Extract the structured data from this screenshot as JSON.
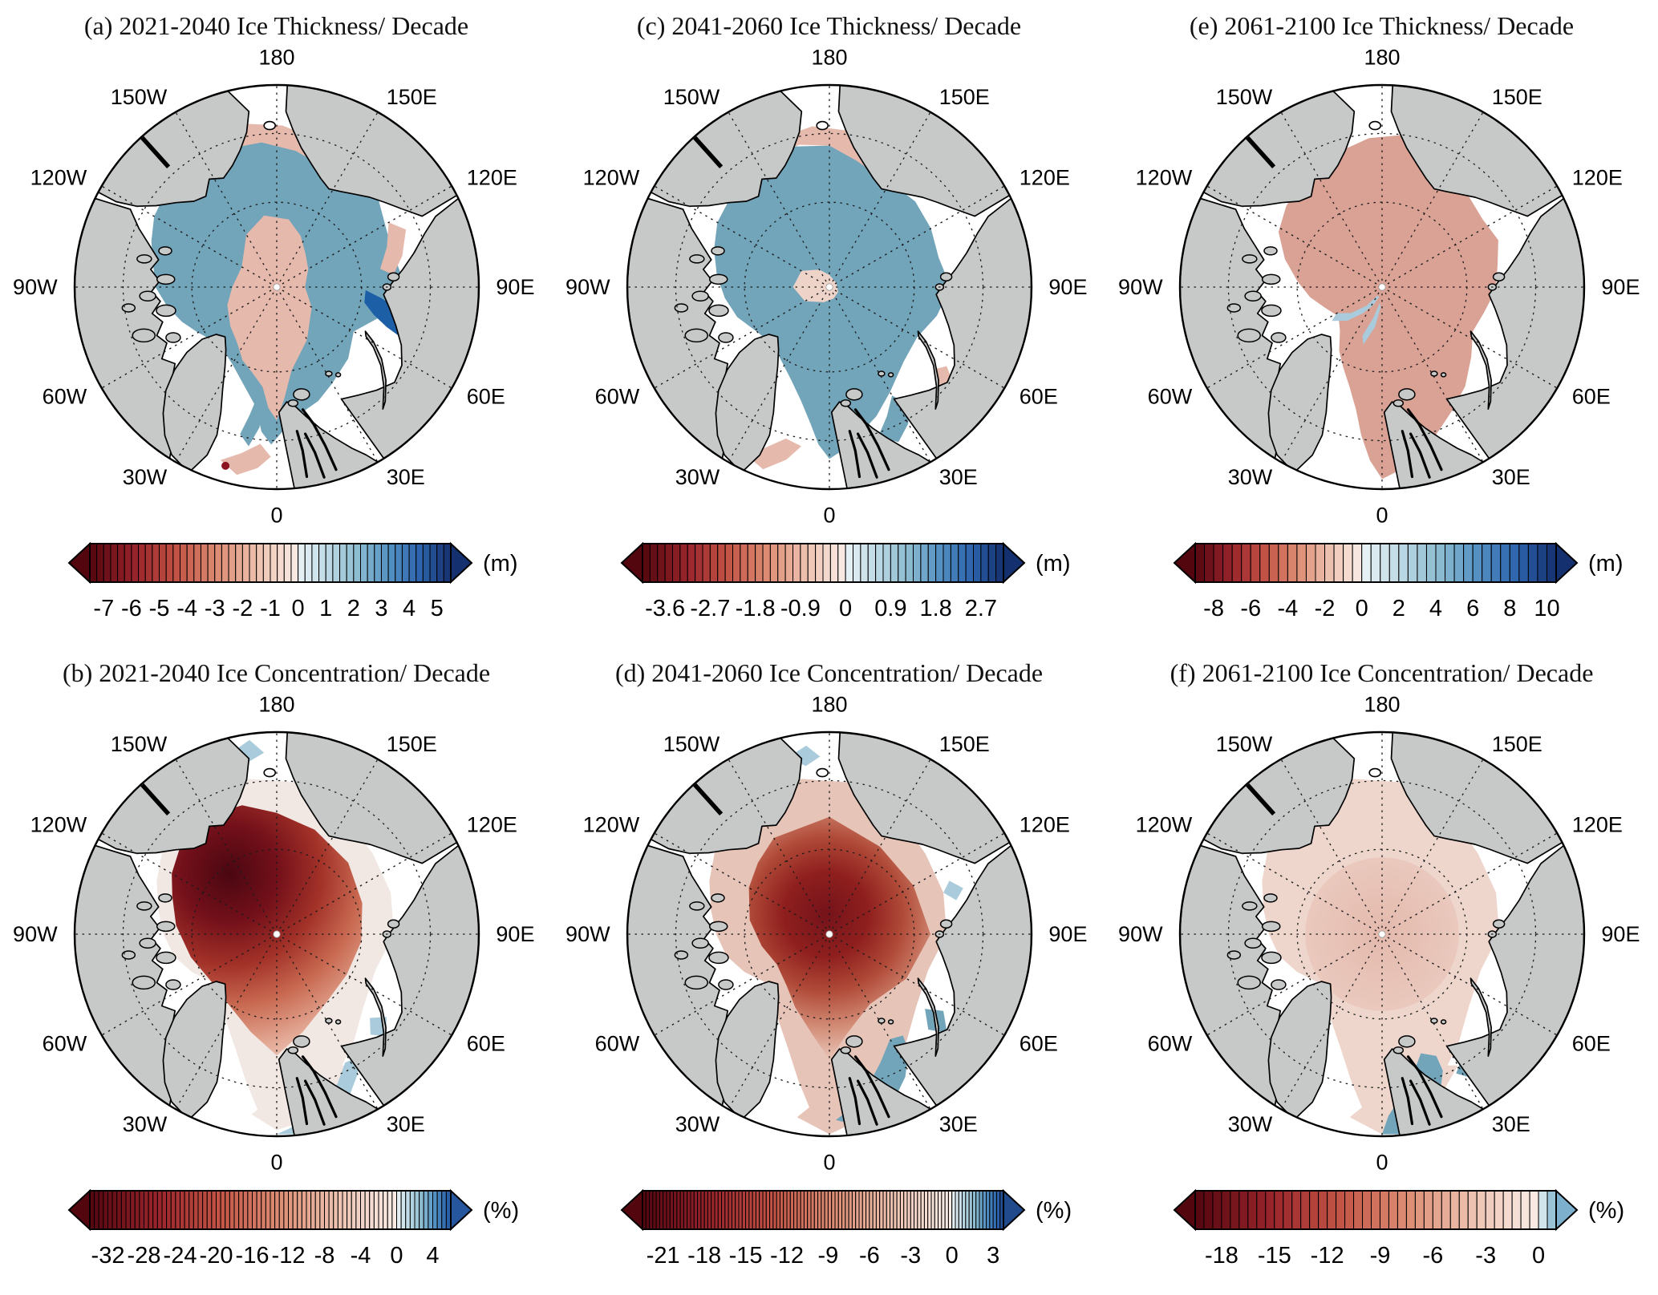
{
  "figure": {
    "description": "Projected Arctic sea ice thickness and concentration trends per decade for three future periods, shown on north polar stereographic maps with diverging red-blue colorbars."
  },
  "palette": {
    "land": "#c7c9c9",
    "ocean": "#ffffff",
    "coast": "#000000",
    "pink": "#e5b9ac",
    "pink_light": "#eed3c9",
    "rose": "#d9a295",
    "steel": "#72a4ba",
    "steel_deep": "#4689ad",
    "navy_patch": "#1d5fa6",
    "light_blue": "#a9cbdb",
    "pale_red": "#f1e7e3",
    "fringe_pink_d": "#e7c4b8",
    "base_pink_f": "#eed6cd",
    "dark_red_spot": "#8c1420"
  },
  "map": {
    "lon_labels": [
      "180",
      "150W",
      "150E",
      "120W",
      "120E",
      "90W",
      "90E",
      "60W",
      "60E",
      "30W",
      "30E",
      "0"
    ],
    "projection": "North Polar Stereographic",
    "graticule": "dashed meridians every 30 degrees and two dashed latitude circles"
  },
  "chart_data": [
    {
      "type": "map",
      "panel": "a",
      "title": "(a) 2021-2040 Ice Thickness/ Decade",
      "variable": "sea ice thickness trend",
      "period": "2021-2040",
      "units": "m per decade",
      "unit_label": "(m)",
      "colorbar": {
        "ticks": [
          "-7",
          "-6",
          "-5",
          "-4",
          "-3",
          "-2",
          "-1",
          "0",
          "1",
          "2",
          "3",
          "4",
          "5"
        ],
        "tick_values": [
          -7,
          -6,
          -5,
          -4,
          -3,
          -2,
          -1,
          0,
          1,
          2,
          3,
          4,
          5
        ],
        "range": [
          -7.5,
          5.5
        ],
        "segments": 52,
        "red_scale": 1.0,
        "blue_scale": 1.0
      },
      "pattern": "Thickness increase (blue) over much of the Arctic basin, decrease (pink) in a central patch toward the Canadian side and along the Siberian and Alaskan coasts; strong localized increase (dark blue) near 90E north of Severnaya Zemlya; scattered patches in the Canadian Archipelago and along East Greenland."
    },
    {
      "type": "map",
      "panel": "c",
      "title": "(c) 2041-2060 Ice Thickness/ Decade",
      "variable": "sea ice thickness trend",
      "period": "2041-2060",
      "units": "m per decade",
      "unit_label": "(m)",
      "colorbar": {
        "ticks": [
          "-3.6",
          "-2.7",
          "-1.8",
          "-0.9",
          "0",
          "0.9",
          "1.8",
          "2.7"
        ],
        "tick_values": [
          -3.6,
          -2.7,
          -1.8,
          -0.9,
          0,
          0.9,
          1.8,
          2.7
        ],
        "range": [
          -4.05,
          3.15
        ],
        "segments": 48,
        "red_scale": 1.0,
        "blue_scale": 1.0
      },
      "pattern": "Broad thickness increase (blue) covering the central Arctic including the Fram Strait side, with a small decrease (pale pink) patch near the pole and pink fringes along the Beaufort, Chukchi and Greenland Sea margins; mixed patches near Novaya Zemlya and the Barents Sea."
    },
    {
      "type": "map",
      "panel": "e",
      "title": "(e) 2061-2100 Ice Thickness/ Decade",
      "variable": "sea ice thickness trend",
      "period": "2061-2100",
      "units": "m per decade",
      "unit_label": "(m)",
      "colorbar": {
        "ticks": [
          "-8",
          "-6",
          "-4",
          "-2",
          "0",
          "2",
          "4",
          "6",
          "8",
          "10"
        ],
        "tick_values": [
          -8,
          -6,
          -4,
          -2,
          0,
          2,
          4,
          6,
          8,
          10
        ],
        "range": [
          -9,
          10.5
        ],
        "segments": 39,
        "red_scale": 1.0,
        "blue_scale": 1.0
      },
      "pattern": "Widespread weak thickness decrease (light rose) across nearly the whole basin extending into the Greenland Sea and Baffin Bay, with narrow blue increase streaks radiating from the pole toward the Canadian Archipelago and small blue bits near the Kara Sea."
    },
    {
      "type": "map",
      "panel": "b",
      "title": "(b) 2021-2040 Ice Concentration/ Decade",
      "variable": "sea ice concentration trend",
      "period": "2021-2040",
      "units": "percent per decade",
      "unit_label": "(%)",
      "colorbar": {
        "ticks": [
          "-32",
          "-28",
          "-24",
          "-20",
          "-16",
          "-12",
          "-8",
          "-4",
          "0",
          "4"
        ],
        "tick_values": [
          -32,
          -28,
          -24,
          -20,
          -16,
          -12,
          -8,
          -4,
          0,
          4
        ],
        "range": [
          -34,
          6
        ],
        "segments": 80,
        "red_scale": 1.0,
        "blue_scale": 0.85
      },
      "pattern": "Strong concentration decline (dark red, below -28%/decade) centered on the Beaufort Sea side of the pole, fading to near-zero (white) toward the coasts; small positive patches (light blue) in the Bering Strait, Baffin Bay, and the Barents/Norwegian Seas."
    },
    {
      "type": "map",
      "panel": "d",
      "title": "(d) 2041-2060 Ice Concentration/ Decade",
      "variable": "sea ice concentration trend",
      "period": "2041-2060",
      "units": "percent per decade",
      "unit_label": "(%)",
      "colorbar": {
        "ticks": [
          "-21",
          "-18",
          "-15",
          "-12",
          "-9",
          "-6",
          "-3",
          "0",
          "3"
        ],
        "tick_values": [
          -21,
          -18,
          -15,
          -12,
          -9,
          -6,
          -3,
          0,
          3
        ],
        "range": [
          -22.5,
          3.75
        ],
        "segments": 105,
        "red_scale": 1.0,
        "blue_scale": 0.9
      },
      "pattern": "Dark red decline centered on the pole stretching toward 180 and down the Fram Strait, surrounded by light pink decline; positive (blue) patches in the Barents and Norwegian Seas near Svalbard and Novaya Zemlya and small spots along the Siberian coast."
    },
    {
      "type": "map",
      "panel": "f",
      "title": "(f) 2061-2100 Ice Concentration/ Decade",
      "variable": "sea ice concentration trend",
      "period": "2061-2100",
      "units": "percent per decade",
      "unit_label": "(%)",
      "colorbar": {
        "ticks": [
          "-18",
          "-15",
          "-12",
          "-9",
          "-6",
          "-3",
          "0"
        ],
        "tick_values": [
          -18,
          -15,
          -12,
          -9,
          -6,
          -3,
          0
        ],
        "range": [
          -19.5,
          1
        ],
        "segments": 41,
        "red_scale": 1.0,
        "blue_scale": 0.45
      },
      "pattern": "Weak uniform decline (very light pink) across the entire Arctic basin, slightly stronger near the pole; a distinct positive (steel blue) region in the Norwegian/Barents Sea off Scandinavia and small blue spots in the Canadian Archipelago and Kara Sea."
    }
  ]
}
